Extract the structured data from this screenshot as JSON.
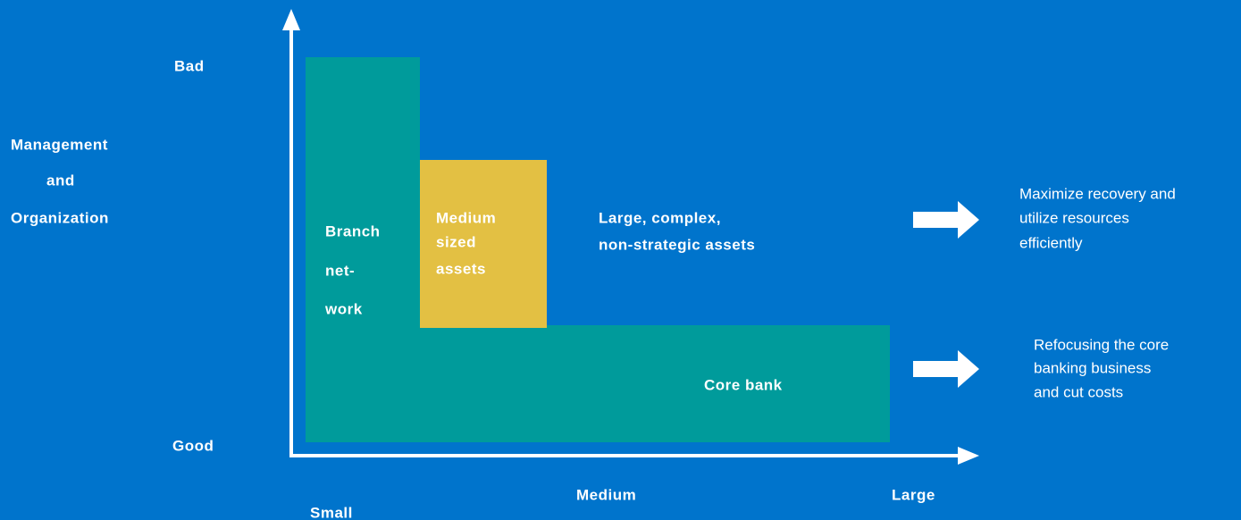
{
  "y_axis": {
    "label": [
      "Management",
      "and",
      "Organization"
    ],
    "top": "Bad",
    "bottom": "Good"
  },
  "x_axis": {
    "left": "Small",
    "middle": "Medium",
    "right": "Large"
  },
  "regions": {
    "branch_network": [
      "Branch",
      "net-",
      "work"
    ],
    "medium_sized_assets": [
      "Medium",
      "sized",
      "assets"
    ],
    "large_complex": [
      "Large, complex,",
      "non-strategic assets"
    ],
    "core_bank": "Core bank"
  },
  "outcomes": [
    [
      "Maximize recovery and",
      "utilize resources",
      "efficiently"
    ],
    [
      "Refocusing the core",
      "banking business",
      "and cut costs"
    ]
  ]
}
